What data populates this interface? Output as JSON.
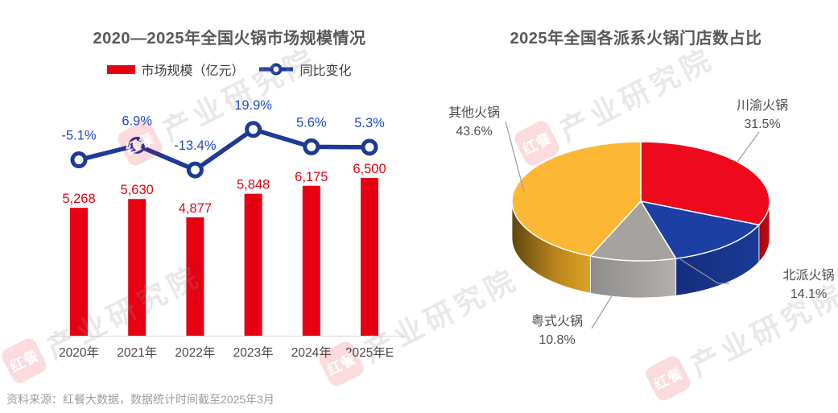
{
  "page": {
    "background": "#ffffff",
    "source_note": "资料来源：红餐大数据，数据统计时间截至2025年3月",
    "watermark_logo": "红餐",
    "watermark_text": "产业研究院"
  },
  "left_chart": {
    "title": "2020—2025年全国火锅市场规模情况",
    "legend_bar_label": "市场规模（亿元）",
    "legend_line_label": "同比变化"
  },
  "right_chart": {
    "title": "2025年全国各派系火锅门店数占比"
  },
  "chart_data": [
    {
      "type": "bar",
      "subtype": "bar-line-combo",
      "title": "2020—2025年全国火锅市场规模情况",
      "categories": [
        "2020年",
        "2021年",
        "2022年",
        "2023年",
        "2024年",
        "2025年E"
      ],
      "series": [
        {
          "name": "市场规模（亿元）",
          "type": "bar",
          "color": "#E60012",
          "values": [
            5268,
            5630,
            4877,
            5848,
            6175,
            6500
          ],
          "value_labels": [
            "5,268",
            "5,630",
            "4,877",
            "5,848",
            "6,175",
            "6,500"
          ]
        },
        {
          "name": "同比变化",
          "type": "line",
          "color": "#1C3A96",
          "values": [
            -5.1,
            6.9,
            -13.4,
            19.9,
            5.6,
            5.3
          ],
          "value_labels": [
            "-5.1%",
            "6.9%",
            "-13.4%",
            "19.9%",
            "5.6%",
            "5.3%"
          ]
        }
      ],
      "bar_axis_min": 0,
      "grid": false,
      "legend_position": "top"
    },
    {
      "type": "pie",
      "style": "3d",
      "title": "2025年全国各派系火锅门店数占比",
      "start_angle_deg": 0,
      "direction": "clockwise",
      "slices": [
        {
          "label": "川渝火锅",
          "value": 31.5,
          "pct_label": "31.5%",
          "color": "#EE0A1C"
        },
        {
          "label": "北派火锅",
          "value": 14.1,
          "pct_label": "14.1%",
          "color": "#1C3FA3"
        },
        {
          "label": "粤式火锅",
          "value": 10.8,
          "pct_label": "10.8%",
          "color": "#A5A2A0"
        },
        {
          "label": "其他火锅",
          "value": 43.6,
          "pct_label": "43.6%",
          "color": "#FCB834"
        }
      ]
    }
  ]
}
